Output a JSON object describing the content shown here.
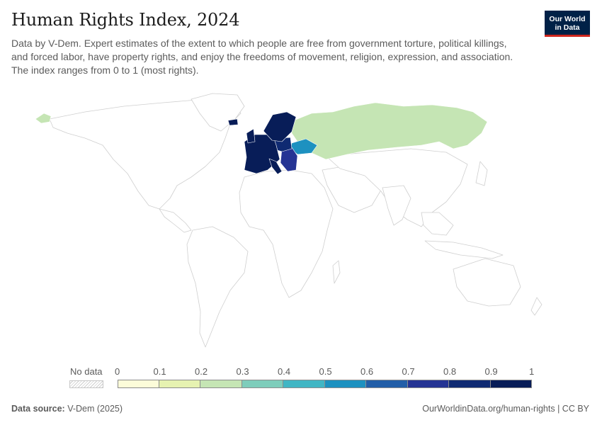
{
  "header": {
    "title": "Human Rights Index, 2024",
    "subtitle": "Data by V-Dem. Expert estimates of the extent to which people are free from government torture, political killings, and forced labor, have property rights, and enjoy the freedoms of movement, religion, expression, and association. The index ranges from 0 to 1 (most rights)."
  },
  "logo": {
    "line1": "Our World",
    "line2": "in Data",
    "bg_color": "#002147",
    "accent_color": "#ce261e"
  },
  "legend": {
    "no_data_label": "No data",
    "ticks": [
      "0",
      "0.1",
      "0.2",
      "0.3",
      "0.4",
      "0.5",
      "0.6",
      "0.7",
      "0.8",
      "0.9",
      "1"
    ],
    "bin_colors": [
      "#fcfcd9",
      "#e6f2b1",
      "#c5e5b4",
      "#7ecdbb",
      "#41b6c4",
      "#1d91c0",
      "#225ea8",
      "#253494",
      "#0f2a72",
      "#081d58"
    ]
  },
  "map_data": {
    "year": 2024,
    "regions": [
      {
        "name": "Western & Northern Europe",
        "value": 0.95,
        "color": "#081d58"
      },
      {
        "name": "Central Europe",
        "value": 0.9,
        "color": "#0f2a72"
      },
      {
        "name": "Balkans",
        "value": 0.8,
        "color": "#253494"
      },
      {
        "name": "Ukraine",
        "value": 0.6,
        "color": "#1d91c0"
      },
      {
        "name": "Russia",
        "value": 0.2,
        "color": "#c5e5b4"
      },
      {
        "name": "Alaska (Russia color)",
        "value": 0.2,
        "color": "#c5e5b4"
      },
      {
        "name": "Rest of world",
        "value": null,
        "color": "#ffffff"
      }
    ]
  },
  "footer": {
    "source_label": "Data source:",
    "source_value": "V-Dem (2025)",
    "url_license": "OurWorldinData.org/human-rights | CC BY"
  }
}
